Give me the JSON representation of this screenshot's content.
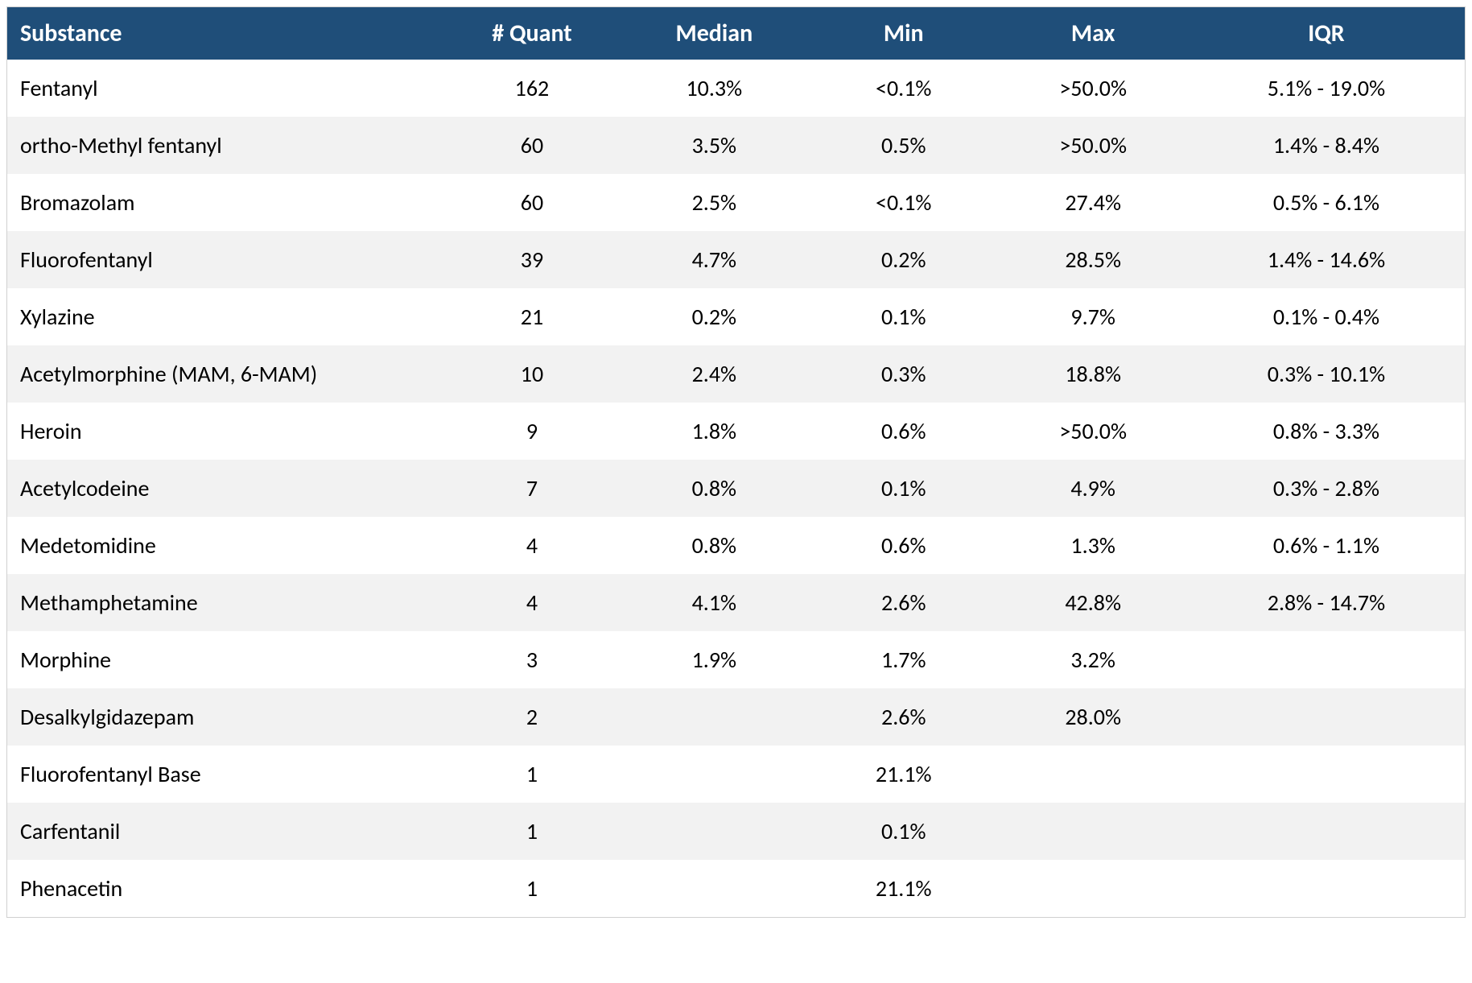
{
  "table": {
    "type": "table",
    "header_bg": "#1f4e79",
    "header_fg": "#ffffff",
    "row_odd_bg": "#ffffff",
    "row_even_bg": "#f2f2f2",
    "body_fg": "#000000",
    "header_fontsize": 30,
    "body_fontsize": 28,
    "columns": [
      {
        "key": "substance",
        "label": "Substance",
        "align": "left",
        "width_pct": 30
      },
      {
        "key": "quant",
        "label": "# Quant",
        "align": "center",
        "width_pct": 12
      },
      {
        "key": "median",
        "label": "Median",
        "align": "center",
        "width_pct": 13
      },
      {
        "key": "min",
        "label": "Min",
        "align": "center",
        "width_pct": 13
      },
      {
        "key": "max",
        "label": "Max",
        "align": "center",
        "width_pct": 13
      },
      {
        "key": "iqr",
        "label": "IQR",
        "align": "center",
        "width_pct": 19
      }
    ],
    "rows": [
      {
        "substance": "Fentanyl",
        "quant": "162",
        "median": "10.3%",
        "min": "<0.1%",
        "max": ">50.0%",
        "iqr": "5.1% - 19.0%"
      },
      {
        "substance": "ortho-Methyl fentanyl",
        "quant": "60",
        "median": "3.5%",
        "min": "0.5%",
        "max": ">50.0%",
        "iqr": "1.4% - 8.4%"
      },
      {
        "substance": "Bromazolam",
        "quant": "60",
        "median": "2.5%",
        "min": "<0.1%",
        "max": "27.4%",
        "iqr": "0.5% - 6.1%"
      },
      {
        "substance": "Fluorofentanyl",
        "quant": "39",
        "median": "4.7%",
        "min": "0.2%",
        "max": "28.5%",
        "iqr": "1.4% - 14.6%"
      },
      {
        "substance": "Xylazine",
        "quant": "21",
        "median": "0.2%",
        "min": "0.1%",
        "max": "9.7%",
        "iqr": "0.1% - 0.4%"
      },
      {
        "substance": "Acetylmorphine (MAM, 6-MAM)",
        "quant": "10",
        "median": "2.4%",
        "min": "0.3%",
        "max": "18.8%",
        "iqr": "0.3% - 10.1%"
      },
      {
        "substance": "Heroin",
        "quant": "9",
        "median": "1.8%",
        "min": "0.6%",
        "max": ">50.0%",
        "iqr": "0.8% - 3.3%"
      },
      {
        "substance": "Acetylcodeine",
        "quant": "7",
        "median": "0.8%",
        "min": "0.1%",
        "max": "4.9%",
        "iqr": "0.3% - 2.8%"
      },
      {
        "substance": "Medetomidine",
        "quant": "4",
        "median": "0.8%",
        "min": "0.6%",
        "max": "1.3%",
        "iqr": "0.6% - 1.1%"
      },
      {
        "substance": "Methamphetamine",
        "quant": "4",
        "median": "4.1%",
        "min": "2.6%",
        "max": "42.8%",
        "iqr": "2.8% - 14.7%"
      },
      {
        "substance": "Morphine",
        "quant": "3",
        "median": "1.9%",
        "min": "1.7%",
        "max": "3.2%",
        "iqr": ""
      },
      {
        "substance": "Desalkylgidazepam",
        "quant": "2",
        "median": "",
        "min": "2.6%",
        "max": "28.0%",
        "iqr": ""
      },
      {
        "substance": "Fluorofentanyl Base",
        "quant": "1",
        "median": "",
        "min": "21.1%",
        "max": "",
        "iqr": ""
      },
      {
        "substance": "Carfentanil",
        "quant": "1",
        "median": "",
        "min": "0.1%",
        "max": "",
        "iqr": ""
      },
      {
        "substance": "Phenacetin",
        "quant": "1",
        "median": "",
        "min": "21.1%",
        "max": "",
        "iqr": ""
      }
    ]
  }
}
